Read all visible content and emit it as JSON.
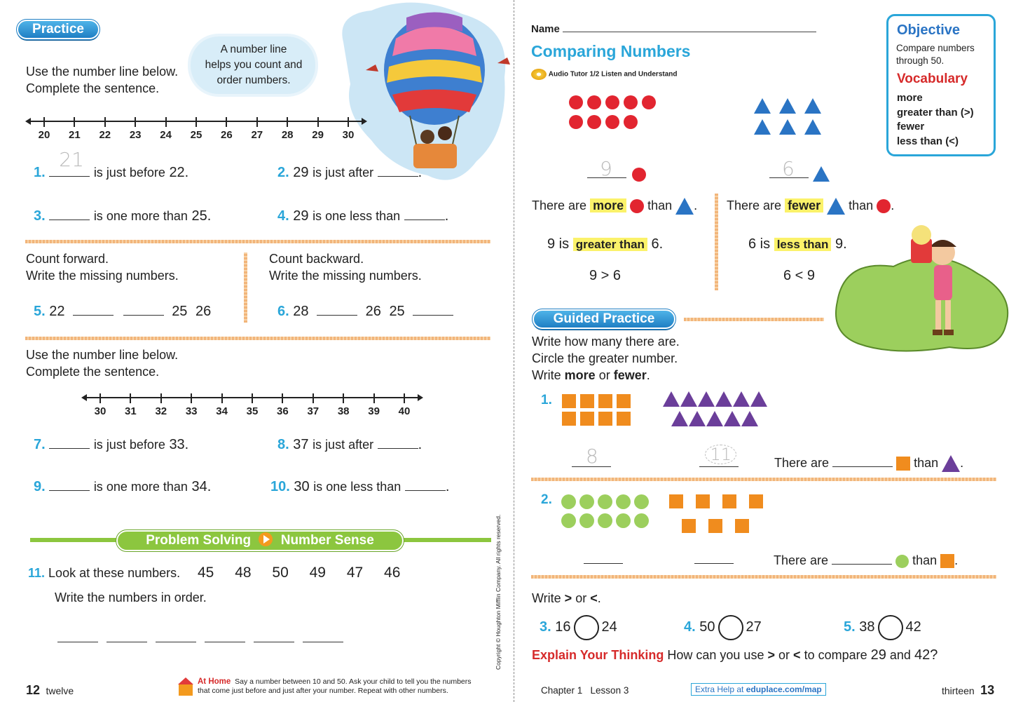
{
  "left": {
    "badge": "Practice",
    "intro1": "Use the number line below.",
    "intro2": "Complete the sentence.",
    "cloud": [
      "A number line",
      "helps you count and",
      "order numbers."
    ],
    "numberline1": [
      "20",
      "21",
      "22",
      "23",
      "24",
      "25",
      "26",
      "27",
      "28",
      "29",
      "30"
    ],
    "q1_num": "1.",
    "q1_trace": "21",
    "q1_text": "is just before",
    "q1_val": "22.",
    "q2_num": "2.",
    "q2_val": "29",
    "q2_text": "is just after",
    "q3_num": "3.",
    "q3_text": "is one more than",
    "q3_val": "25.",
    "q4_num": "4.",
    "q4_val": "29",
    "q4_text": "is one less than",
    "cf1": "Count forward.",
    "cf2": "Write the missing numbers.",
    "cb1": "Count backward.",
    "cb2": "Write the missing numbers.",
    "q5_num": "5.",
    "q5_a": "22",
    "q5_b": "25",
    "q5_c": "26",
    "q6_num": "6.",
    "q6_a": "28",
    "q6_b": "26",
    "q6_c": "25",
    "intro3": "Use the number line below.",
    "intro4": "Complete the sentence.",
    "numberline2": [
      "30",
      "31",
      "32",
      "33",
      "34",
      "35",
      "36",
      "37",
      "38",
      "39",
      "40"
    ],
    "q7_num": "7.",
    "q7_text": "is just before",
    "q7_val": "33.",
    "q8_num": "8.",
    "q8_val": "37",
    "q8_text": "is just after",
    "q9_num": "9.",
    "q9_text": "is one more than",
    "q9_val": "34.",
    "q10_num": "10.",
    "q10_val": "30",
    "q10_text": "is one less than",
    "ps_banner_a": "Problem Solving",
    "ps_banner_b": "Number Sense",
    "q11_num": "11.",
    "q11_text": "Look at these numbers.",
    "q11_nums": [
      "45",
      "48",
      "50",
      "49",
      "47",
      "46"
    ],
    "q11_write": "Write the numbers in order.",
    "page_num": "12",
    "page_word": "twelve",
    "athome_label": "At Home",
    "athome_text1": "Say a number between 10 and 50. Ask your child to tell you the numbers",
    "athome_text2": "that come just before and just after your number. Repeat with other numbers.",
    "copyright": "Copyright © Houghton Mifflin Company. All rights reserved."
  },
  "right": {
    "name_label": "Name",
    "title": "Comparing Numbers",
    "audio": "Audio Tutor 1/2 Listen and Understand",
    "objective_title": "Objective",
    "objective_text1": "Compare numbers",
    "objective_text2": "through 50.",
    "vocab_title": "Vocabulary",
    "vocab": [
      "more",
      "greater than (>)",
      "fewer",
      "less than (<)"
    ],
    "trace9": "9",
    "trace6": "6",
    "there_are": "There are",
    "more": "more",
    "fewer": "fewer",
    "than": "than",
    "cmp1_a": "9 is",
    "cmp1_hl": "greater than",
    "cmp1_b": "6.",
    "cmp2_a": "6 is",
    "cmp2_hl": "less than",
    "cmp2_b": "9.",
    "ineq1": "9 > 6",
    "ineq2": "6 < 9",
    "guided": "Guided Practice",
    "g1": "Write how many there are.",
    "g2": "Circle the greater number.",
    "g3_a": "Write ",
    "g3_more": "more",
    "g3_or": " or ",
    "g3_fewer": "fewer",
    "g3_end": ".",
    "p1_num": "1.",
    "p1_trace_a": "8",
    "p1_trace_b": "11",
    "p2_num": "2.",
    "write_a": "Write ",
    "write_gt": ">",
    "write_or": " or ",
    "write_lt": "<",
    "write_end": ".",
    "p3_num": "3.",
    "p3_a": "16",
    "p3_b": "24",
    "p4_num": "4.",
    "p4_a": "50",
    "p4_b": "27",
    "p5_num": "5.",
    "p5_a": "38",
    "p5_b": "42",
    "explain_label": "Explain Your Thinking",
    "explain_text_a": "How can you use",
    "explain_gt": ">",
    "explain_or": "or",
    "explain_lt": "<",
    "explain_text_b": "to compare",
    "explain_n1": "29",
    "explain_and": "and",
    "explain_n2": "42?",
    "footer_chapter": "Chapter 1   Lesson 3",
    "footer_help_a": "Extra Help at ",
    "footer_help_b": "eduplace.com/map",
    "page_word": "thirteen",
    "page_num": "13"
  }
}
